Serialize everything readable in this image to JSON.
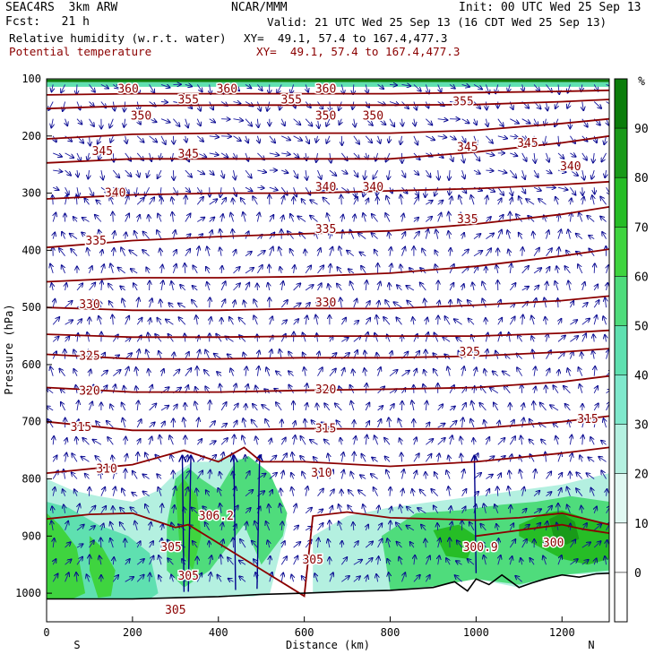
{
  "header": {
    "model": "SEAC4RS  3km ARW",
    "forecast": "Fcst:   21 h",
    "org": "NCAR/MMM",
    "init": "Init: 00 UTC Wed 25 Sep 13",
    "valid": "Valid: 21 UTC Wed 25 Sep 13 (16 CDT Wed 25 Sep 13)",
    "field1": "Relative humidity (w.r.t. water)",
    "field1_xy": "XY=  49.1, 57.4 to 167.4,477.3",
    "field2": "Potential temperature",
    "field2_xy": "XY=  49.1, 57.4 to 167.4,477.3",
    "field2_color": "#8b0000"
  },
  "chart_data": {
    "type": "contour-cross-section",
    "ylabel": "Pressure (hPa)",
    "xlabel": "Distance (km)",
    "x_ticks": [
      0,
      200,
      400,
      600,
      800,
      1000,
      1200
    ],
    "y_ticks": [
      100,
      200,
      300,
      400,
      500,
      600,
      700,
      800,
      900,
      1000
    ],
    "xlim": [
      0,
      1310
    ],
    "ylim": [
      1050,
      100
    ],
    "x_end_labels": {
      "left": "S",
      "right": "N"
    },
    "colorbar": {
      "unit": "%",
      "tick_labels": [
        "90",
        "80",
        "70",
        "60",
        "50",
        "40",
        "30",
        "20",
        "10",
        "0"
      ],
      "colors": [
        "#ffffff",
        "#ffffff",
        "#e0f8f2",
        "#b4f0e0",
        "#7fe8cc",
        "#5fe0b0",
        "#4fdc7c",
        "#3fd43f",
        "#26bd26",
        "#199a19",
        "#0b7d0b"
      ]
    },
    "theta_color": "#8b0000",
    "theta_contours": [
      {
        "label": "360",
        "x": [
          0,
          200,
          400,
          600,
          800,
          1000,
          1200,
          1310
        ],
        "p": [
          128,
          126,
          126,
          126,
          126,
          124,
          122,
          120
        ]
      },
      {
        "label": "355",
        "x": [
          0,
          200,
          400,
          600,
          800,
          1000,
          1200,
          1310
        ],
        "p": [
          152,
          147,
          146,
          146,
          146,
          145,
          140,
          136
        ]
      },
      {
        "label": "350",
        "x": [
          0,
          200,
          400,
          600,
          800,
          1000,
          1200,
          1310
        ],
        "p": [
          205,
          197,
          195,
          195,
          195,
          190,
          178,
          170
        ]
      },
      {
        "label": "345",
        "x": [
          0,
          200,
          400,
          600,
          800,
          1000,
          1200,
          1310
        ],
        "p": [
          247,
          240,
          240,
          240,
          240,
          228,
          212,
          200
        ]
      },
      {
        "label": "340",
        "x": [
          0,
          200,
          400,
          600,
          800,
          1000,
          1200,
          1310
        ],
        "p": [
          310,
          303,
          300,
          300,
          296,
          292,
          285,
          280
        ]
      },
      {
        "label": "335",
        "x": [
          0,
          200,
          400,
          600,
          800,
          1000,
          1200,
          1310
        ],
        "p": [
          395,
          383,
          376,
          371,
          366,
          354,
          337,
          324
        ]
      },
      {
        "label": "",
        "x": [
          0,
          200,
          400,
          600,
          800,
          1000,
          1200,
          1310
        ],
        "p": [
          455,
          448,
          448,
          446,
          440,
          428,
          410,
          398
        ]
      },
      {
        "label": "330",
        "x": [
          0,
          200,
          400,
          600,
          800,
          1000,
          1200,
          1310
        ],
        "p": [
          500,
          505,
          505,
          502,
          502,
          496,
          488,
          480
        ]
      },
      {
        "label": "",
        "x": [
          0,
          200,
          400,
          600,
          800,
          1000,
          1200,
          1310
        ],
        "p": [
          547,
          552,
          552,
          550,
          550,
          550,
          545,
          540
        ]
      },
      {
        "label": "325",
        "x": [
          0,
          200,
          400,
          600,
          800,
          1000,
          1200,
          1310
        ],
        "p": [
          582,
          590,
          590,
          588,
          588,
          585,
          578,
          572
        ]
      },
      {
        "label": "320",
        "x": [
          0,
          200,
          400,
          600,
          800,
          1000,
          1200,
          1310
        ],
        "p": [
          640,
          648,
          648,
          645,
          643,
          640,
          630,
          620
        ]
      },
      {
        "label": "315",
        "x": [
          0,
          200,
          400,
          600,
          800,
          1000,
          1200,
          1310
        ],
        "p": [
          700,
          715,
          715,
          712,
          713,
          712,
          700,
          690
        ]
      },
      {
        "label": "310",
        "x": [
          0,
          200,
          320,
          400,
          460,
          500,
          600,
          800,
          1000,
          1200,
          1310
        ],
        "p": [
          790,
          775,
          750,
          770,
          745,
          770,
          770,
          778,
          770,
          755,
          745
        ]
      },
      {
        "label": "305",
        "x": [
          0,
          100,
          200,
          300,
          330,
          600,
          620,
          700,
          800,
          1000,
          1100,
          1200,
          1310
        ],
        "p": [
          870,
          862,
          860,
          885,
          880,
          1005,
          865,
          858,
          868,
          872,
          868,
          860,
          880
        ]
      },
      {
        "label": "300.9",
        "x": [
          1000,
          1100,
          1150,
          1200,
          1250,
          1310
        ],
        "p": [
          900,
          890,
          885,
          880,
          888,
          895
        ]
      }
    ],
    "theta_labels": [
      {
        "text": "360",
        "x": 190,
        "p": 118
      },
      {
        "text": "360",
        "x": 420,
        "p": 118
      },
      {
        "text": "360",
        "x": 650,
        "p": 118
      },
      {
        "text": "355",
        "x": 330,
        "p": 137
      },
      {
        "text": "355",
        "x": 570,
        "p": 137
      },
      {
        "text": "355",
        "x": 970,
        "p": 140
      },
      {
        "text": "350",
        "x": 220,
        "p": 165
      },
      {
        "text": "350",
        "x": 650,
        "p": 165
      },
      {
        "text": "350",
        "x": 760,
        "p": 165
      },
      {
        "text": "345",
        "x": 130,
        "p": 227
      },
      {
        "text": "345",
        "x": 330,
        "p": 232
      },
      {
        "text": "345",
        "x": 980,
        "p": 220
      },
      {
        "text": "345",
        "x": 1120,
        "p": 213
      },
      {
        "text": "340",
        "x": 160,
        "p": 300
      },
      {
        "text": "340",
        "x": 650,
        "p": 290
      },
      {
        "text": "340",
        "x": 760,
        "p": 290
      },
      {
        "text": "340",
        "x": 1220,
        "p": 254
      },
      {
        "text": "335",
        "x": 115,
        "p": 384
      },
      {
        "text": "335",
        "x": 650,
        "p": 363
      },
      {
        "text": "335",
        "x": 980,
        "p": 346
      },
      {
        "text": "330",
        "x": 100,
        "p": 495
      },
      {
        "text": "330",
        "x": 650,
        "p": 492
      },
      {
        "text": "325",
        "x": 100,
        "p": 585
      },
      {
        "text": "325",
        "x": 985,
        "p": 578
      },
      {
        "text": "320",
        "x": 100,
        "p": 646
      },
      {
        "text": "320",
        "x": 650,
        "p": 644
      },
      {
        "text": "315",
        "x": 80,
        "p": 710
      },
      {
        "text": "315",
        "x": 650,
        "p": 712
      },
      {
        "text": "315",
        "x": 1260,
        "p": 696
      },
      {
        "text": "310",
        "x": 140,
        "p": 783
      },
      {
        "text": "310",
        "x": 640,
        "p": 790
      },
      {
        "text": "306.2",
        "x": 395,
        "p": 865
      },
      {
        "text": "305",
        "x": 290,
        "p": 920
      },
      {
        "text": "305",
        "x": 330,
        "p": 970
      },
      {
        "text": "305",
        "x": 620,
        "p": 942
      },
      {
        "text": "305",
        "x": 300,
        "p": 1030
      },
      {
        "text": "300.9",
        "x": 1010,
        "p": 920
      },
      {
        "text": "300",
        "x": 1180,
        "p": 912
      }
    ],
    "terrain_x": [
      0,
      100,
      200,
      300,
      400,
      500,
      600,
      700,
      800,
      900,
      950,
      980,
      1000,
      1030,
      1060,
      1100,
      1130,
      1160,
      1200,
      1240,
      1280,
      1310
    ],
    "terrain_p": [
      1010,
      1010,
      1010,
      1008,
      1006,
      1002,
      1000,
      997,
      995,
      990,
      980,
      996,
      975,
      985,
      968,
      990,
      982,
      975,
      968,
      972,
      966,
      965
    ],
    "rh_regions": [
      {
        "rh": 25,
        "x": [
          0,
          60,
          120,
          200,
          260,
          300,
          340,
          380,
          420,
          480,
          540,
          560,
          520,
          480,
          400,
          320,
          200,
          0
        ],
        "p": [
          800,
          820,
          830,
          840,
          820,
          790,
          770,
          770,
          760,
          770,
          820,
          880,
          1000,
          1006,
          1006,
          1008,
          1010,
          1010
        ]
      },
      {
        "rh": 45,
        "x": [
          0,
          50,
          120,
          190,
          240,
          260,
          240,
          160,
          80,
          0
        ],
        "p": [
          840,
          850,
          880,
          900,
          930,
          1000,
          1010,
          1010,
          1010,
          1010
        ]
      },
      {
        "rh": 55,
        "x": [
          280,
          300,
          330,
          360,
          400,
          440,
          470,
          520,
          560,
          550,
          500,
          460,
          420,
          380,
          320,
          280
        ],
        "p": [
          880,
          800,
          780,
          800,
          820,
          770,
          760,
          790,
          860,
          900,
          950,
          880,
          920,
          960,
          990,
          960
        ]
      },
      {
        "rh": 65,
        "x": [
          0,
          30,
          70,
          90,
          60,
          20,
          0
        ],
        "p": [
          860,
          880,
          920,
          1000,
          1010,
          1010,
          1010
        ]
      },
      {
        "rh": 65,
        "x": [
          100,
          130,
          160,
          150,
          120,
          100
        ],
        "p": [
          900,
          920,
          960,
          1005,
          1008,
          960
        ]
      },
      {
        "rh": 60,
        "x": [
          300,
          320,
          350,
          360,
          340,
          310
        ],
        "p": [
          820,
          800,
          830,
          900,
          960,
          920
        ]
      },
      {
        "rh": 25,
        "x": [
          620,
          700,
          800,
          900,
          1000,
          1100,
          1200,
          1310,
          1310,
          1200,
          1100,
          1000,
          950,
          900,
          800,
          700,
          620
        ],
        "p": [
          900,
          865,
          850,
          840,
          830,
          820,
          810,
          790,
          965,
          968,
          990,
          975,
          980,
          990,
          995,
          997,
          1000
        ]
      },
      {
        "rh": 55,
        "x": [
          780,
          860,
          960,
          1060,
          1140,
          1220,
          1310,
          1310,
          1200,
          1100,
          1000,
          900,
          800
        ],
        "p": [
          900,
          860,
          855,
          845,
          840,
          830,
          840,
          960,
          968,
          985,
          975,
          988,
          994
        ]
      },
      {
        "rh": 70,
        "x": [
          1100,
          1160,
          1200,
          1260,
          1310,
          1310,
          1260,
          1200,
          1150,
          1100
        ],
        "p": [
          880,
          860,
          855,
          870,
          880,
          940,
          950,
          940,
          920,
          900
        ]
      },
      {
        "rh": 85,
        "x": [
          1170,
          1200,
          1230,
          1240,
          1210,
          1180
        ],
        "p": [
          870,
          860,
          875,
          905,
          915,
          900
        ]
      },
      {
        "rh": 70,
        "x": [
          900,
          960,
          1000,
          980,
          930
        ],
        "p": [
          890,
          880,
          900,
          940,
          935
        ]
      },
      {
        "rh": 95,
        "x": [
          0,
          200,
          400,
          600,
          800,
          1000,
          1200,
          1310,
          1310,
          1000,
          600,
          200,
          0
        ],
        "p": [
          101,
          101,
          101,
          101,
          101,
          101,
          101,
          101,
          106,
          106,
          106,
          106,
          106
        ]
      },
      {
        "rh": 45,
        "x": [
          0,
          400,
          800,
          1310,
          1310,
          800,
          400,
          0
        ],
        "p": [
          106,
          106,
          106,
          106,
          114,
          114,
          114,
          114
        ]
      }
    ],
    "strong_updrafts_km": [
      320,
      330,
      440,
      490,
      1000
    ],
    "wind_field": {
      "dx_km": 28,
      "p_levels": [
        110,
        140,
        170,
        200,
        230,
        260,
        290,
        320,
        350,
        380,
        410,
        440,
        470,
        500,
        530,
        560,
        590,
        620,
        650,
        680,
        710,
        740,
        770,
        800,
        830,
        860,
        890,
        920,
        950,
        980
      ]
    }
  }
}
